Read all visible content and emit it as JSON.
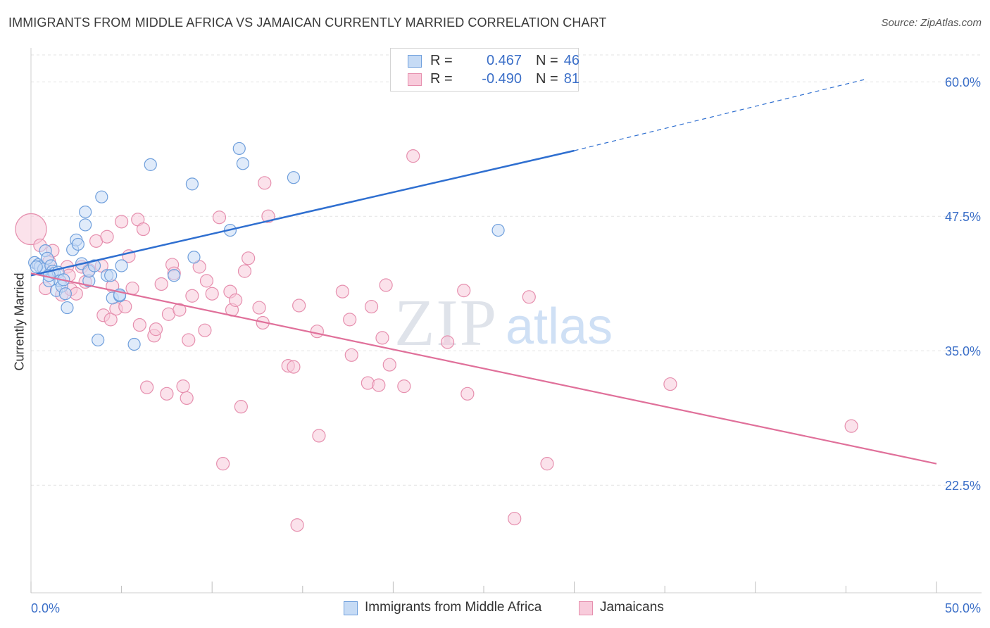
{
  "header": {
    "title": "IMMIGRANTS FROM MIDDLE AFRICA VS JAMAICAN CURRENTLY MARRIED CORRELATION CHART",
    "source": "Source: ZipAtlas.com"
  },
  "watermark": {
    "zip": "ZIP",
    "atlas": "atlas"
  },
  "legend": {
    "rows": [
      {
        "r_label": "R =",
        "r_value": "0.467",
        "n_label": "N =",
        "n_value": "46"
      },
      {
        "r_label": "R =",
        "r_value": "-0.490",
        "n_label": "N =",
        "n_value": "81"
      }
    ]
  },
  "bottom_legend": {
    "series_a": "Immigrants from Middle Africa",
    "series_b": "Jamaicans"
  },
  "colors": {
    "blue_stroke": "#6f9fdc",
    "blue_fill": "#c6dbf5",
    "blue_line": "#2f6fd0",
    "pink_stroke": "#e68fae",
    "pink_fill": "#f8cbdb",
    "pink_line": "#e0709a",
    "tick_text": "#3b6fc8",
    "grid": "#e3e3e3"
  },
  "chart_data": {
    "type": "scatter",
    "title": "IMMIGRANTS FROM MIDDLE AFRICA VS JAMAICAN CURRENTLY MARRIED CORRELATION CHART",
    "xlabel": "",
    "ylabel": "Currently Married",
    "xlim": [
      0,
      50
    ],
    "ylim": [
      12.5,
      62.5
    ],
    "x_tick_labels": [
      "0.0%",
      "50.0%"
    ],
    "y_ticks": [
      22.5,
      35.0,
      47.5,
      60.0
    ],
    "y_tick_labels": [
      "22.5%",
      "35.0%",
      "47.5%",
      "60.0%"
    ],
    "grid": true,
    "legend_position": "top-center",
    "series": [
      {
        "name": "Immigrants from Middle Africa",
        "r": 0.467,
        "n": 46,
        "trend": {
          "x0": 0,
          "y0": 42.0,
          "x1": 30,
          "y1": 53.6,
          "dashed_to_x": 46,
          "dashed_to_y": 60.2
        },
        "points": [
          [
            0.2,
            43.2
          ],
          [
            0.4,
            43.0
          ],
          [
            0.5,
            42.8
          ],
          [
            0.7,
            42.6
          ],
          [
            0.8,
            44.3
          ],
          [
            0.9,
            43.6
          ],
          [
            1.0,
            41.5
          ],
          [
            1.1,
            42.9
          ],
          [
            1.2,
            42.4
          ],
          [
            1.3,
            42.2
          ],
          [
            1.4,
            40.6
          ],
          [
            1.5,
            42.3
          ],
          [
            1.6,
            41.5
          ],
          [
            1.7,
            41.0
          ],
          [
            1.8,
            41.6
          ],
          [
            1.9,
            40.3
          ],
          [
            2.0,
            39.0
          ],
          [
            2.3,
            44.4
          ],
          [
            2.5,
            45.3
          ],
          [
            2.6,
            44.9
          ],
          [
            2.8,
            43.1
          ],
          [
            3.0,
            47.9
          ],
          [
            3.0,
            46.7
          ],
          [
            3.2,
            41.5
          ],
          [
            3.2,
            42.4
          ],
          [
            3.5,
            42.9
          ],
          [
            3.7,
            36.0
          ],
          [
            3.9,
            49.3
          ],
          [
            4.2,
            42.0
          ],
          [
            4.4,
            42.0
          ],
          [
            4.5,
            39.9
          ],
          [
            4.9,
            40.1
          ],
          [
            4.9,
            40.2
          ],
          [
            5.0,
            42.9
          ],
          [
            5.7,
            35.6
          ],
          [
            6.6,
            52.3
          ],
          [
            7.9,
            42.0
          ],
          [
            8.9,
            50.5
          ],
          [
            9.0,
            43.7
          ],
          [
            11.0,
            46.2
          ],
          [
            11.5,
            53.8
          ],
          [
            11.7,
            52.4
          ],
          [
            14.5,
            51.1
          ],
          [
            25.8,
            46.2
          ],
          [
            0.3,
            42.8
          ],
          [
            1.0,
            42.0
          ]
        ]
      },
      {
        "name": "Jamaicans",
        "r": -0.49,
        "n": 81,
        "trend": {
          "x0": 0,
          "y0": 42.2,
          "x1": 50,
          "y1": 24.5
        },
        "points": [
          [
            0.0,
            46.3
          ],
          [
            0.5,
            44.8
          ],
          [
            0.8,
            40.8
          ],
          [
            1.0,
            43.3
          ],
          [
            1.2,
            44.3
          ],
          [
            1.7,
            40.2
          ],
          [
            2.0,
            42.8
          ],
          [
            2.1,
            42.0
          ],
          [
            2.2,
            40.7
          ],
          [
            2.5,
            40.3
          ],
          [
            2.8,
            42.8
          ],
          [
            3.0,
            41.4
          ],
          [
            3.2,
            42.5
          ],
          [
            3.6,
            45.2
          ],
          [
            3.9,
            42.9
          ],
          [
            4.0,
            38.3
          ],
          [
            4.2,
            45.6
          ],
          [
            4.4,
            37.9
          ],
          [
            4.7,
            38.9
          ],
          [
            5.0,
            47.0
          ],
          [
            5.2,
            39.1
          ],
          [
            5.4,
            43.8
          ],
          [
            5.6,
            40.8
          ],
          [
            5.9,
            47.2
          ],
          [
            6.0,
            37.4
          ],
          [
            6.2,
            46.3
          ],
          [
            6.4,
            31.6
          ],
          [
            6.8,
            36.4
          ],
          [
            6.9,
            37.0
          ],
          [
            7.2,
            41.2
          ],
          [
            7.5,
            31.0
          ],
          [
            7.6,
            38.4
          ],
          [
            7.8,
            43.0
          ],
          [
            7.9,
            42.2
          ],
          [
            8.2,
            38.8
          ],
          [
            8.4,
            31.7
          ],
          [
            8.6,
            30.6
          ],
          [
            8.7,
            36.0
          ],
          [
            8.9,
            40.1
          ],
          [
            9.3,
            42.8
          ],
          [
            9.6,
            36.9
          ],
          [
            9.7,
            41.5
          ],
          [
            10.0,
            40.3
          ],
          [
            10.4,
            47.4
          ],
          [
            10.6,
            24.5
          ],
          [
            11.0,
            40.5
          ],
          [
            11.1,
            38.8
          ],
          [
            11.3,
            39.7
          ],
          [
            11.6,
            29.8
          ],
          [
            11.8,
            42.4
          ],
          [
            12.0,
            43.6
          ],
          [
            12.6,
            39.0
          ],
          [
            12.8,
            37.6
          ],
          [
            12.9,
            50.6
          ],
          [
            13.1,
            47.5
          ],
          [
            14.2,
            33.6
          ],
          [
            14.5,
            33.5
          ],
          [
            14.7,
            18.8
          ],
          [
            14.8,
            39.2
          ],
          [
            15.8,
            36.8
          ],
          [
            15.9,
            27.1
          ],
          [
            17.2,
            40.5
          ],
          [
            17.6,
            37.9
          ],
          [
            17.7,
            34.6
          ],
          [
            18.6,
            32.0
          ],
          [
            18.8,
            39.1
          ],
          [
            19.2,
            31.8
          ],
          [
            19.4,
            36.2
          ],
          [
            19.6,
            41.1
          ],
          [
            19.8,
            33.7
          ],
          [
            20.6,
            31.7
          ],
          [
            21.1,
            53.1
          ],
          [
            23.0,
            35.8
          ],
          [
            23.9,
            40.6
          ],
          [
            24.1,
            31.0
          ],
          [
            26.7,
            19.4
          ],
          [
            27.5,
            40.0
          ],
          [
            28.5,
            24.5
          ],
          [
            35.3,
            31.9
          ],
          [
            45.3,
            28.0
          ],
          [
            4.5,
            41.0
          ]
        ]
      }
    ]
  }
}
